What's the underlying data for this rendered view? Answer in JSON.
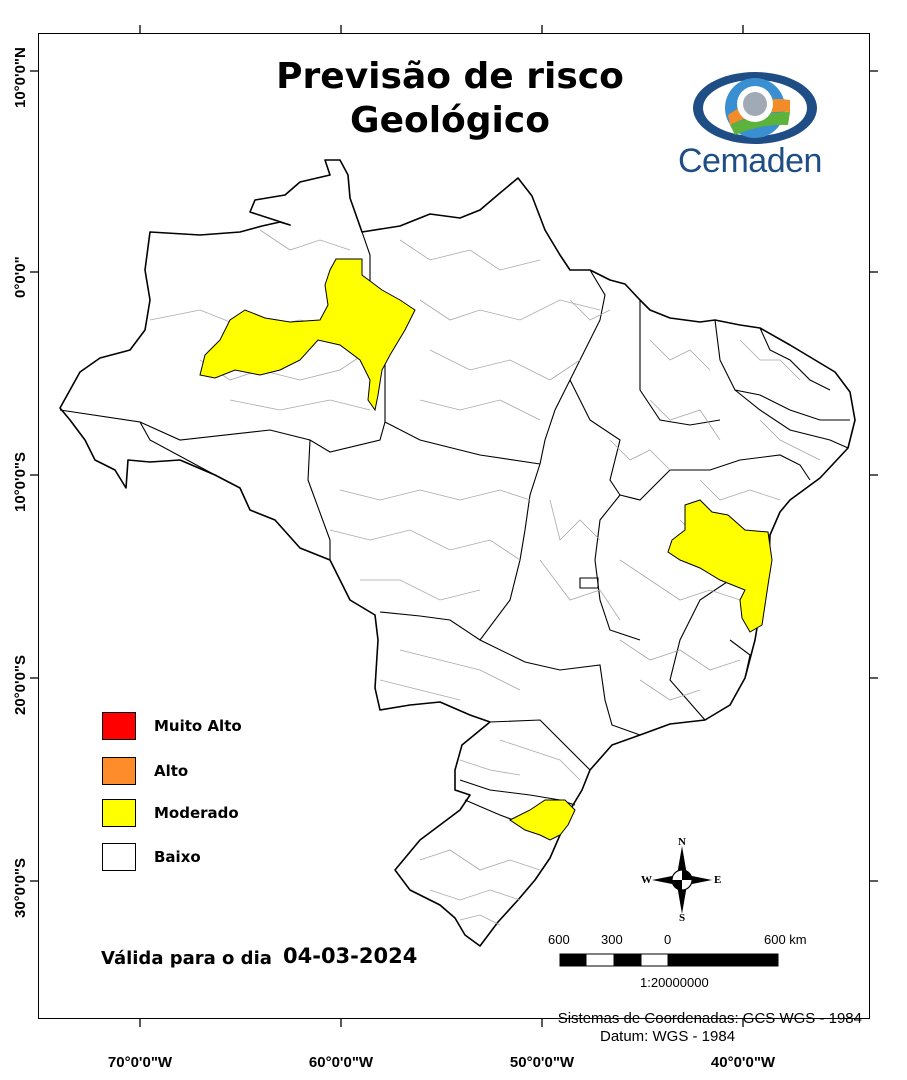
{
  "map": {
    "title_line1": "Previsão de risco",
    "title_line2": "Geológico",
    "logo_text": "Cemaden",
    "legend": [
      {
        "label": "Muito Alto",
        "color": "#ff0000"
      },
      {
        "label": "Alto",
        "color": "#ff8c2a"
      },
      {
        "label": "Moderado",
        "color": "#ffff00"
      },
      {
        "label": "Baixo",
        "color": "#ffffff"
      }
    ],
    "valid_label": "Válida para o dia",
    "valid_date": "04-03-2024",
    "lat_labels": [
      "10°0'0\"N",
      "0°0'0\"",
      "10°0'0\"S",
      "20°0'0\"S",
      "30°0'0\"S"
    ],
    "lon_labels": [
      "70°0'0\"W",
      "60°0'0\"W",
      "50°0'0\"W",
      "40°0'0\"W"
    ],
    "scale_labels": [
      "600",
      "300",
      "0",
      "600 km"
    ],
    "scale_ratio": "1:20000000",
    "crs_line1": "Sistemas de Coordenadas: GCS WGS - 1984",
    "crs_line2": "Datum: WGS - 1984",
    "compass": {
      "n": "N",
      "s": "S",
      "e": "E",
      "w": "W"
    },
    "risk_fill_color": "#ffff00",
    "border_color": "#000000",
    "muni_color": "#a9a9a9"
  }
}
